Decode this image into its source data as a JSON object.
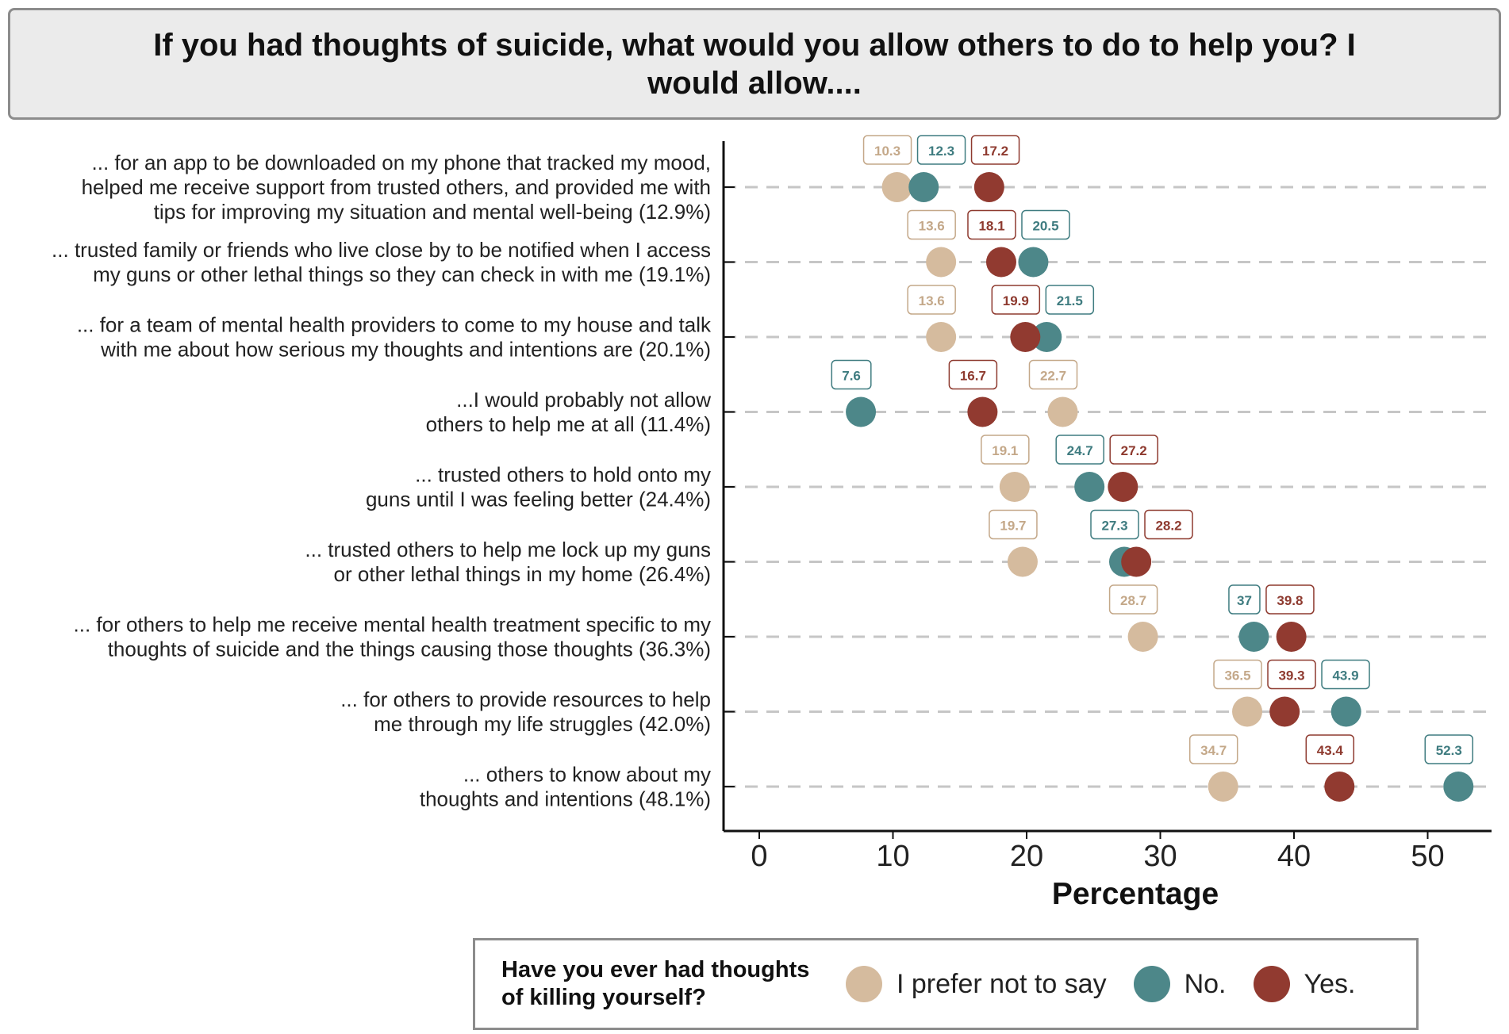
{
  "chart_data": {
    "type": "scatter",
    "title": "If you had thoughts of suicide, what would you allow others to do to help you?  I would allow....",
    "xlabel": "Percentage",
    "xlim": [
      -2.5,
      55.5
    ],
    "xticks": [
      0,
      10,
      20,
      30,
      40,
      50
    ],
    "categories": [
      "... for an app to be downloaded on my phone that tracked my mood, helped me receive support from trusted others, and provided me with tips for improving my situation and mental well-being (12.9%)",
      "... trusted family or friends who live close by to be notified when I access my guns or other lethal things so they can check in with me (19.1%)",
      "... for a team of mental health providers to come to my house and talk with me about how serious my thoughts and intentions are (20.1%)",
      "...I would probably not allow others to help me at all (11.4%)",
      "... trusted others to hold onto my guns until I was feeling better (24.4%)",
      "... trusted others to help me lock up my guns or other lethal things in my home (26.4%)",
      "... for others to help me receive mental health treatment specific to my thoughts of suicide and the things causing those thoughts (36.3%)",
      "... for others to provide resources to help me through my life struggles (42.0%)",
      "... others to know about my thoughts and intentions (48.1%)"
    ],
    "category_lines": [
      [
        "...  for an app to be downloaded on my phone that tracked my mood,",
        "helped me receive support from trusted others, and provided me with",
        "tips for improving my situation and mental well-being (12.9%)"
      ],
      [
        "...  trusted family or friends who live close by to be notified when I access",
        "my guns or other lethal things so they can check in with me (19.1%)"
      ],
      [
        "...  for a team of mental health providers to come to my house and talk",
        "with me about how serious my thoughts and intentions are (20.1%)"
      ],
      [
        "...I would probably not allow",
        "others to help me at all (11.4%)"
      ],
      [
        "...  trusted others to hold onto my",
        "guns until I was feeling better (24.4%)"
      ],
      [
        "...  trusted others to help me lock up my guns",
        "or other lethal things in my home (26.4%)"
      ],
      [
        "... for others to help me receive mental health treatment specific to my",
        "thoughts of suicide and the things causing those thoughts (36.3%)"
      ],
      [
        "... for others to provide resources to help",
        "me through my life struggles (42.0%)"
      ],
      [
        "... others to know about my",
        "thoughts and intentions (48.1%)"
      ]
    ],
    "series": [
      {
        "name": "I prefer not to say",
        "color": "#d5bb9e",
        "text_color": "#c4a889",
        "values": [
          10.3,
          13.6,
          13.6,
          22.7,
          19.1,
          19.7,
          28.7,
          36.5,
          34.7
        ]
      },
      {
        "name": "No.",
        "color": "#4d8789",
        "text_color": "#3f7c80",
        "values": [
          12.3,
          20.5,
          21.5,
          7.6,
          24.7,
          27.3,
          37,
          43.9,
          52.3
        ]
      },
      {
        "name": "Yes.",
        "color": "#913a30",
        "text_color": "#8e3a2f",
        "values": [
          17.2,
          18.1,
          19.9,
          16.7,
          27.2,
          28.2,
          39.8,
          39.3,
          43.4
        ]
      }
    ],
    "legend_title": "Have you ever had thoughts of killing yourself?",
    "legend_title_lines": [
      "Have you ever had thoughts",
      "of killing yourself?"
    ],
    "legend_position": "bottom"
  }
}
